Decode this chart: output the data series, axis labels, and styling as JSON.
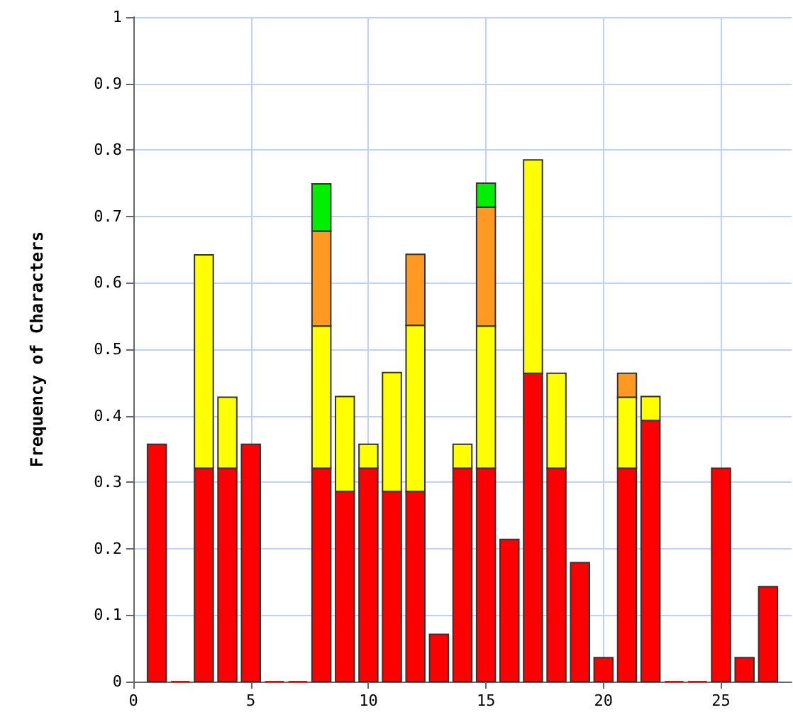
{
  "chart_data": {
    "type": "bar",
    "stacked": true,
    "ylabel": "Frequency of Characters",
    "x": [
      1,
      2,
      3,
      4,
      5,
      6,
      7,
      8,
      9,
      10,
      11,
      12,
      13,
      14,
      15,
      16,
      17,
      18,
      19,
      20,
      21,
      22,
      23,
      24,
      25,
      26,
      27
    ],
    "xlim": [
      0,
      28
    ],
    "xticks": [
      0,
      5,
      10,
      15,
      20,
      25
    ],
    "ylim": [
      0,
      1
    ],
    "yticks": [
      0,
      0.1,
      0.2,
      0.3,
      0.4,
      0.5,
      0.6,
      0.7,
      0.8,
      0.9,
      1
    ],
    "grid": true,
    "series": [
      {
        "color": "#ff0000",
        "values": [
          0.357,
          0,
          0.321,
          0.321,
          0.357,
          0,
          0,
          0.321,
          0.286,
          0.321,
          0.286,
          0.286,
          0.071,
          0.321,
          0.321,
          0.214,
          0.464,
          0.321,
          0.179,
          0.036,
          0.321,
          0.393,
          0,
          0,
          0.321,
          0.036,
          0.143
        ]
      },
      {
        "color": "#ffff00",
        "values": [
          null,
          null,
          0.321,
          0.107,
          null,
          null,
          null,
          0.214,
          0.143,
          0.036,
          0.179,
          0.25,
          null,
          0.036,
          0.214,
          null,
          0.321,
          0.143,
          null,
          null,
          0.107,
          0.036,
          null,
          null,
          null,
          null,
          null
        ]
      },
      {
        "color": "#ff9922",
        "values": [
          null,
          null,
          null,
          null,
          null,
          null,
          null,
          0.143,
          null,
          null,
          null,
          0.107,
          null,
          null,
          0.179,
          null,
          null,
          null,
          null,
          null,
          0.036,
          null,
          null,
          null,
          null,
          null,
          null
        ]
      },
      {
        "color": "#00ee00",
        "values": [
          null,
          null,
          null,
          null,
          null,
          null,
          null,
          0.071,
          null,
          null,
          null,
          null,
          null,
          null,
          0.036,
          null,
          null,
          null,
          null,
          null,
          null,
          null,
          null,
          null,
          null,
          null,
          null
        ]
      }
    ]
  }
}
